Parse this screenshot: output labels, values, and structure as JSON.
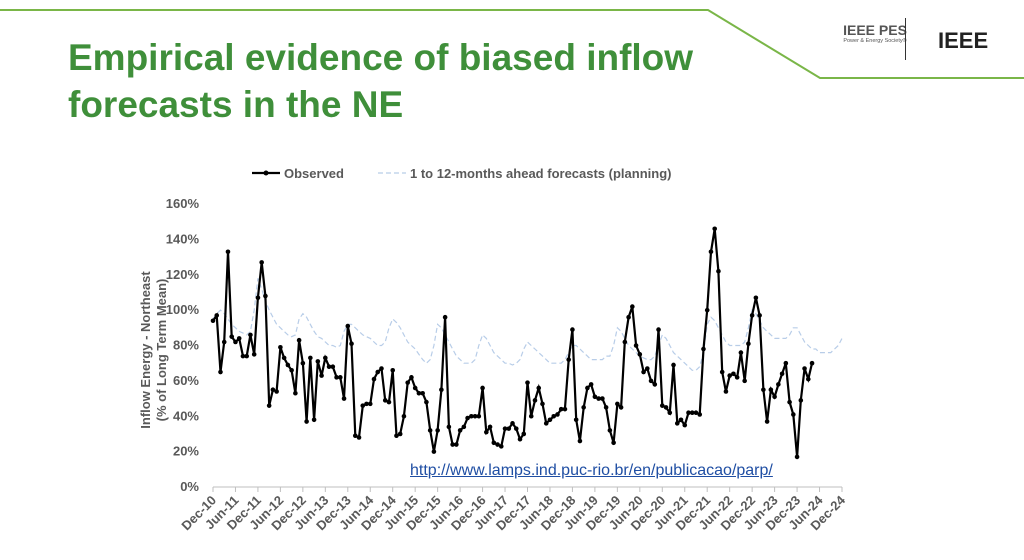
{
  "header": {
    "title": "Empirical evidence of biased inflow forecasts in the NE",
    "logo_pes": "IEEE PES",
    "logo_pes_sub": "Power & Energy Society®",
    "logo_ieee": "IEEE"
  },
  "link": "http://www.lamps.ind.puc-rio.br/en/publicacao/parp/",
  "chart_data": {
    "type": "line",
    "ylabel": [
      "Inflow Energy - Northeast",
      "(% of Long Term Mean)"
    ],
    "ylim": [
      0,
      160
    ],
    "yticks": [
      {
        "value": 0,
        "label": "0%"
      },
      {
        "value": 20,
        "label": "20%"
      },
      {
        "value": 40,
        "label": "40%"
      },
      {
        "value": 60,
        "label": "60%"
      },
      {
        "value": 80,
        "label": "80%"
      },
      {
        "value": 100,
        "label": "100%"
      },
      {
        "value": 120,
        "label": "120%"
      },
      {
        "value": 140,
        "label": "140%"
      },
      {
        "value": 160,
        "label": "160%"
      }
    ],
    "categories": [
      "Dec-10",
      null,
      null,
      null,
      null,
      null,
      "Jun-11",
      null,
      null,
      null,
      null,
      null,
      "Dec-11",
      null,
      null,
      null,
      null,
      null,
      "Jun-12",
      null,
      null,
      null,
      null,
      null,
      "Dec-12",
      null,
      null,
      null,
      null,
      null,
      "Jun-13",
      null,
      null,
      null,
      null,
      null,
      "Dec-13",
      null,
      null,
      null,
      null,
      null,
      "Jun-14",
      null,
      null,
      null,
      null,
      null,
      "Dec-14",
      null,
      null,
      null,
      null,
      null,
      "Jun-15",
      null,
      null,
      null,
      null,
      null,
      "Dec-15",
      null,
      null,
      null,
      null,
      null,
      "Jun-16",
      null,
      null,
      null,
      null,
      null,
      "Dec-16",
      null,
      null,
      null,
      null,
      null,
      "Jun-17",
      null,
      null,
      null,
      null,
      null,
      "Dec-17",
      null,
      null,
      null,
      null,
      null,
      "Jun-18",
      null,
      null,
      null,
      null,
      null,
      "Dec-18",
      null,
      null,
      null,
      null,
      null,
      "Jun-19",
      null,
      null,
      null,
      null,
      null,
      "Dec-19",
      null,
      null,
      null,
      null,
      null,
      "Jun-20",
      null,
      null,
      null,
      null,
      null,
      "Dec-20",
      null,
      null,
      null,
      null,
      null,
      "Jun-21",
      null,
      null,
      null,
      null,
      null,
      "Dec-21",
      null,
      null,
      null,
      null,
      null,
      "Jun-22",
      null,
      null,
      null,
      null,
      null,
      "Dec-22",
      null,
      null,
      null,
      null,
      null,
      "Jun-23",
      null,
      null,
      null,
      null,
      null,
      "Dec-23",
      null,
      null,
      null,
      null,
      null,
      "Jun-24",
      null,
      null,
      null,
      null,
      null,
      "Dec-24"
    ],
    "series": [
      {
        "name": "1 to 12-months ahead forecasts (planning)",
        "color": "#b8cde8",
        "dashed": true,
        "values": [
          95,
          98,
          100,
          98,
          95,
          92,
          90,
          88,
          87,
          86,
          88,
          100,
          118,
          112,
          105,
          100,
          96,
          92,
          90,
          88,
          86,
          85,
          86,
          95,
          98,
          96,
          92,
          88,
          85,
          84,
          82,
          80,
          80,
          79,
          80,
          88,
          92,
          92,
          90,
          88,
          86,
          85,
          84,
          82,
          80,
          80,
          82,
          90,
          95,
          93,
          90,
          86,
          82,
          80,
          78,
          75,
          72,
          70,
          72,
          80,
          92,
          90,
          86,
          82,
          78,
          74,
          72,
          70,
          70,
          70,
          72,
          80,
          86,
          84,
          80,
          76,
          74,
          72,
          70,
          70,
          69,
          70,
          72,
          78,
          82,
          80,
          78,
          76,
          74,
          72,
          70,
          70,
          70,
          70,
          72,
          76,
          80,
          80,
          78,
          76,
          74,
          72,
          72,
          72,
          72,
          74,
          74,
          80,
          90,
          88,
          84,
          80,
          78,
          76,
          74,
          73,
          72,
          72,
          74,
          80,
          86,
          84,
          80,
          76,
          74,
          72,
          70,
          68,
          66,
          66,
          68,
          76,
          92,
          96,
          94,
          90,
          86,
          82,
          80,
          80,
          80,
          80,
          82,
          90,
          100,
          98,
          94,
          90,
          88,
          86,
          84,
          84,
          84,
          84,
          86,
          90,
          90,
          86,
          82,
          80,
          78,
          78,
          76,
          76,
          76,
          76,
          78,
          80,
          84
        ]
      },
      {
        "name": "Observed",
        "color": "#000000",
        "markers": true,
        "values": [
          94,
          97,
          65,
          82,
          133,
          85,
          82,
          84,
          74,
          74,
          86,
          75,
          107,
          127,
          108,
          46,
          55,
          54,
          79,
          73,
          69,
          66,
          53,
          83,
          70,
          37,
          73,
          38,
          71,
          63,
          73,
          68,
          68,
          62,
          62,
          50,
          91,
          81,
          29,
          28,
          46,
          47,
          47,
          61,
          65,
          67,
          49,
          48,
          66,
          29,
          30,
          40,
          59,
          62,
          56,
          53,
          53,
          48,
          32,
          20,
          32,
          55,
          96,
          34,
          24,
          24,
          32,
          34,
          39,
          40,
          40,
          40,
          56,
          31,
          34,
          25,
          24,
          23,
          33,
          33,
          36,
          33,
          27,
          30,
          59,
          40,
          49,
          56,
          47,
          36,
          38,
          40,
          41,
          44,
          44,
          72,
          89,
          38,
          26,
          45,
          56,
          58,
          51,
          50,
          50,
          45,
          32,
          25,
          47,
          45,
          82,
          96,
          102,
          80,
          75,
          65,
          67,
          60,
          58,
          89,
          46,
          45,
          42,
          69,
          36,
          38,
          35,
          42,
          42,
          42,
          41,
          78,
          100,
          133,
          146,
          122,
          65,
          54,
          63,
          64,
          62,
          76,
          60,
          81,
          97,
          107,
          97,
          55,
          37,
          55,
          51,
          58,
          64,
          70,
          48,
          41,
          17,
          49,
          67,
          61,
          70,
          null,
          null,
          null,
          null,
          null,
          null,
          null,
          null
        ]
      }
    ],
    "legend_order": [
      1,
      0
    ]
  }
}
